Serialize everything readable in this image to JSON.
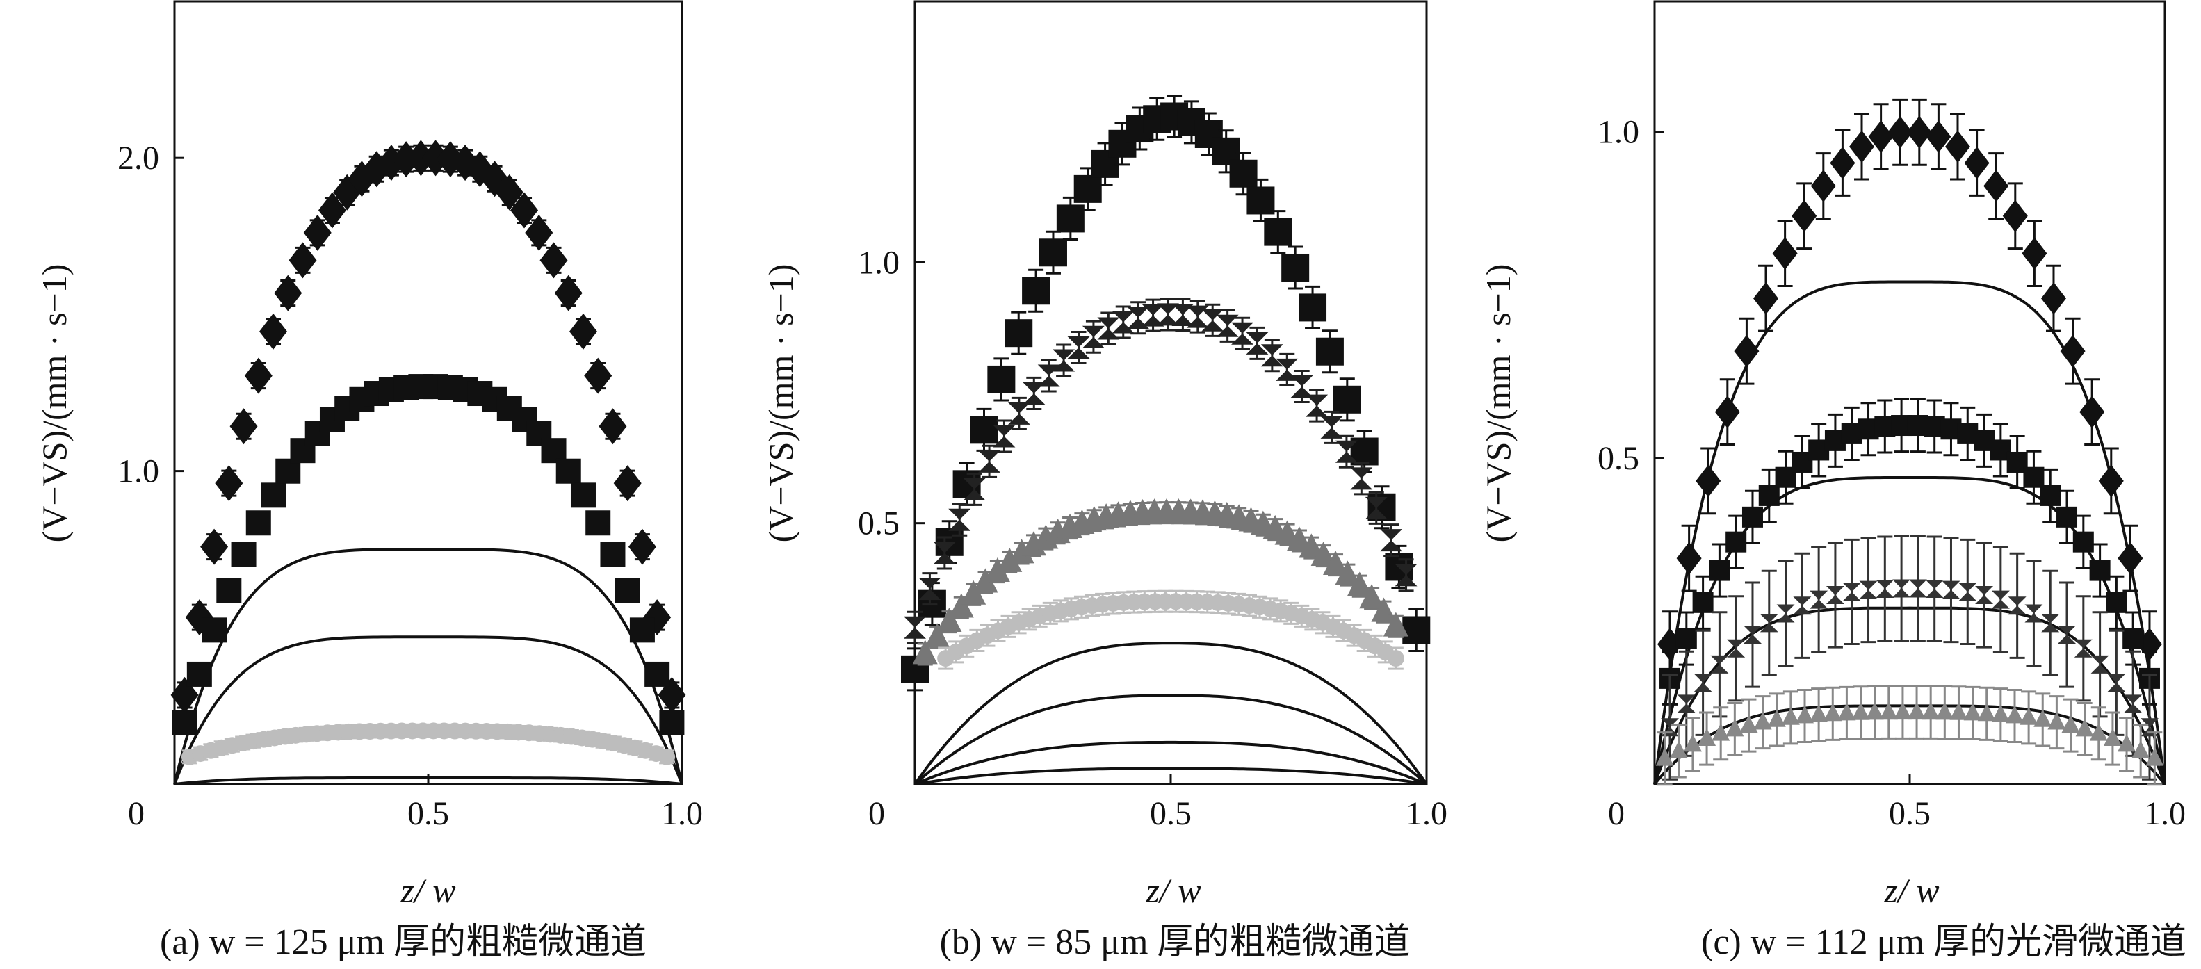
{
  "chart_data": [
    {
      "type": "scatter",
      "caption": "(a) w = 125 μm 厚的粗糙微通道",
      "xlabel": "z/ w",
      "ylabel": "(V−VS)/(mm · s−1)",
      "xlim": [
        0,
        1.0
      ],
      "ylim": [
        0,
        2.5
      ],
      "xticks": [
        {
          "v": 0,
          "t": "0"
        },
        {
          "v": 0.5,
          "t": "0.5"
        },
        {
          "v": 1.0,
          "t": "1.0"
        }
      ],
      "yticks": [
        {
          "v": 1.0,
          "t": "1.0"
        },
        {
          "v": 2.0,
          "t": "2.0"
        }
      ],
      "series": [
        {
          "marker": "diamond",
          "color": "#111111",
          "plateau": 2.0,
          "edge": 0.1,
          "p": 2.5,
          "n": 34,
          "size": 20,
          "xmin": 0.02,
          "xmax": 0.98,
          "err": 0.04
        },
        {
          "marker": "square",
          "color": "#111111",
          "plateau": 1.27,
          "edge": 0.08,
          "p": 2.5,
          "n": 34,
          "size": 18,
          "xmin": 0.02,
          "xmax": 0.98,
          "err": 0.03
        },
        {
          "marker": "circle",
          "color": "#bdbdbd",
          "plateau": 0.17,
          "edge": 0.07,
          "p": 3.0,
          "n": 46,
          "size": 12,
          "xmin": 0.03,
          "xmax": 0.97,
          "err": 0.02
        }
      ],
      "fits": [
        {
          "plateau": 0.75,
          "p": 4.5
        },
        {
          "plateau": 0.47,
          "p": 4.5
        },
        {
          "plateau": 0.02,
          "p": 4.5
        }
      ]
    },
    {
      "type": "scatter",
      "caption": "(b) w = 85 μm 厚的粗糙微通道",
      "xlabel": "z/ w",
      "ylabel": "(V−VS)/(mm · s−1)",
      "xlim": [
        0,
        1.0
      ],
      "ylim": [
        0,
        1.5
      ],
      "xticks": [
        {
          "v": 0,
          "t": "0"
        },
        {
          "v": 0.5,
          "t": "0.5"
        },
        {
          "v": 1.0,
          "t": "1.0"
        }
      ],
      "yticks": [
        {
          "v": 0.5,
          "t": "0.5"
        },
        {
          "v": 1.0,
          "t": "1.0"
        }
      ],
      "series": [
        {
          "marker": "square",
          "color": "#111111",
          "plateau": 1.28,
          "edge": 0.22,
          "p": 1.8,
          "n": 30,
          "size": 20,
          "xmin": 0.0,
          "xmax": 0.98,
          "err": 0.04
        },
        {
          "marker": "hourglass",
          "color": "#222222",
          "plateau": 0.9,
          "edge": 0.3,
          "p": 2.2,
          "n": 34,
          "size": 16,
          "xmin": 0.0,
          "xmax": 0.96,
          "err": 0.03
        },
        {
          "marker": "triangle",
          "color": "#777777",
          "plateau": 0.52,
          "edge": 0.22,
          "p": 2.5,
          "n": 40,
          "size": 18,
          "xmin": 0.02,
          "xmax": 0.94,
          "err": 0.02
        },
        {
          "marker": "circle",
          "color": "#bdbdbd",
          "plateau": 0.35,
          "edge": 0.2,
          "p": 2.5,
          "n": 44,
          "size": 12,
          "xmin": 0.06,
          "xmax": 0.94,
          "err": 0.02
        }
      ],
      "fits": [
        {
          "plateau": 0.27,
          "p": 2.6
        },
        {
          "plateau": 0.17,
          "p": 2.6
        },
        {
          "plateau": 0.08,
          "p": 2.6
        },
        {
          "plateau": 0.03,
          "p": 2.6
        }
      ]
    },
    {
      "type": "scatter",
      "caption": "(c) w = 112 μm 厚的光滑微通道",
      "xlabel": "z/ w",
      "ylabel": "(V−VS)/(mm · s−1)",
      "xlim": [
        0,
        1.0
      ],
      "ylim": [
        0,
        1.2
      ],
      "xticks": [
        {
          "v": 0,
          "t": "0"
        },
        {
          "v": 0.5,
          "t": "0.5"
        },
        {
          "v": 1.0,
          "t": "1.0"
        }
      ],
      "yticks": [
        {
          "v": 0.5,
          "t": "0.5"
        },
        {
          "v": 1.0,
          "t": "1.0"
        }
      ],
      "series": [
        {
          "marker": "diamond",
          "color": "#111111",
          "plateau": 1.0,
          "edge": 0.1,
          "p": 2.2,
          "n": 26,
          "size": 18,
          "xmin": 0.03,
          "xmax": 0.97,
          "err": 0.05
        },
        {
          "marker": "square",
          "color": "#111111",
          "plateau": 0.55,
          "edge": 0.1,
          "p": 2.4,
          "n": 30,
          "size": 15,
          "xmin": 0.03,
          "xmax": 0.97,
          "err": 0.04
        },
        {
          "marker": "hourglass",
          "color": "#333333",
          "plateau": 0.3,
          "edge": 0.05,
          "p": 2.6,
          "n": 30,
          "size": 13,
          "xmin": 0.03,
          "xmax": 0.97,
          "err": 0.08
        },
        {
          "marker": "triangle",
          "color": "#888888",
          "plateau": 0.11,
          "edge": 0.03,
          "p": 3.0,
          "n": 36,
          "size": 13,
          "xmin": 0.02,
          "xmax": 0.98,
          "err": 0.04
        }
      ],
      "fits": [
        {
          "plateau": 0.77,
          "p": 4.0
        },
        {
          "plateau": 0.47,
          "p": 4.0
        },
        {
          "plateau": 0.27,
          "p": 4.0
        },
        {
          "plateau": 0.12,
          "p": 4.0
        }
      ]
    }
  ]
}
